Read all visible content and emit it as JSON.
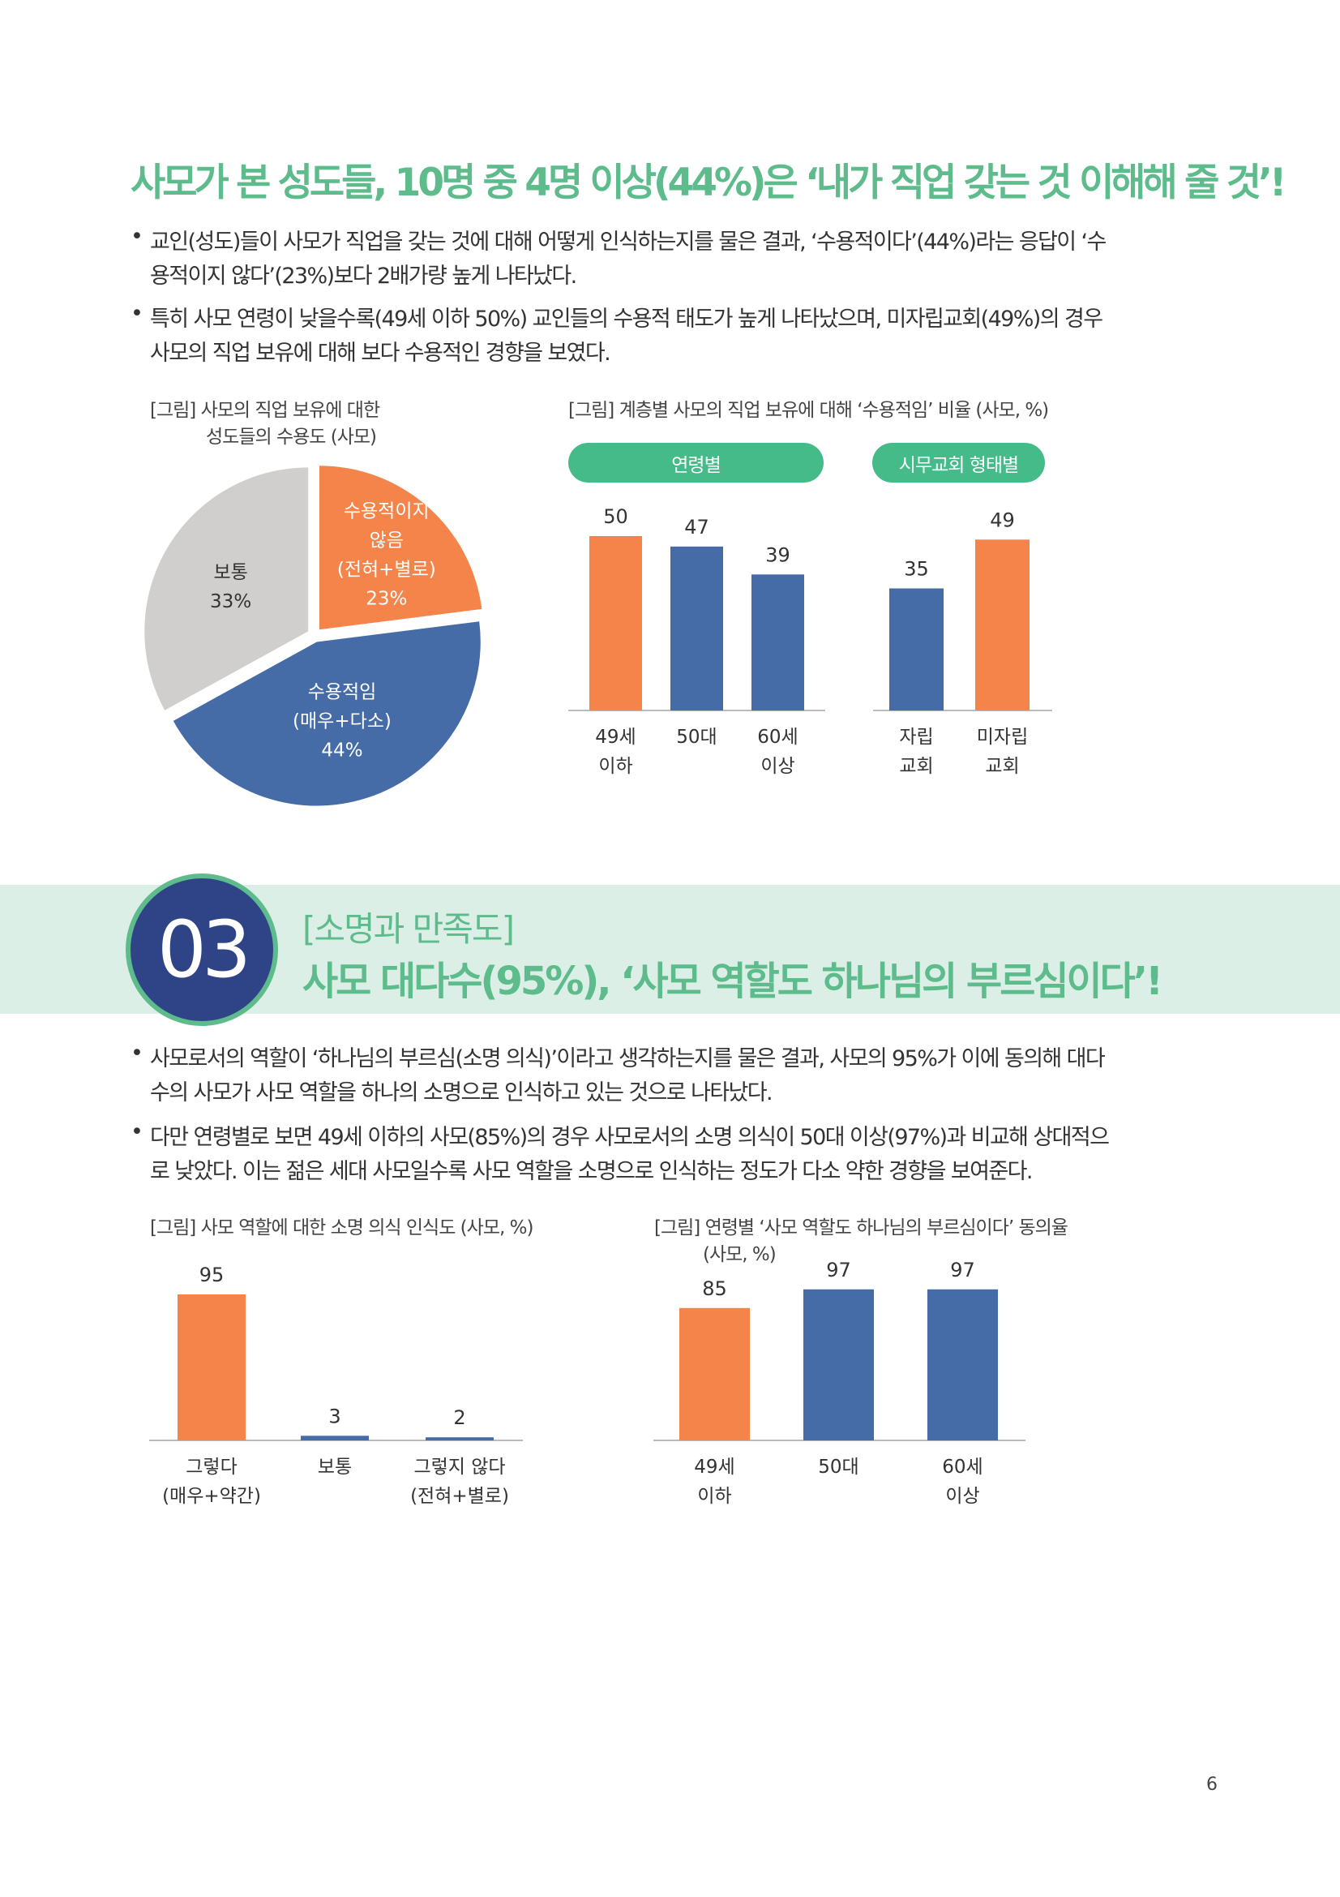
{
  "colors": {
    "accent_green": "#5dbb8c",
    "pill_green": "#46bb8a",
    "orange": "#f4844a",
    "blue": "#466ca8",
    "gray": "#d0cfcd",
    "navy": "#2f4486",
    "band": "#dcefe6"
  },
  "section1": {
    "title": "사모가 본 성도들, 10명 중 4명 이상(44%)은 ‘내가 직업 갖는 것 이해해 줄 것’!",
    "bullets": [
      {
        "lines": [
          "교인(성도)들이 사모가 직업을 갖는 것에 대해 어떻게 인식하는지를 물은 결과, ‘수용적이다’(44%)라는 응답이 ‘수",
          "용적이지 않다’(23%)보다 2배가량 높게 나타났다."
        ]
      },
      {
        "lines": [
          "특히 사모 연령이 낮을수록(49세 이하 50%) 교인들의 수용적 태도가 높게 나타났으며, 미자립교회(49%)의 경우",
          "사모의 직업 보유에 대해 보다 수용적인 경향을 보였다."
        ]
      }
    ]
  },
  "chart_data": [
    {
      "type": "pie",
      "title": [
        "[그림] 사모의 직업 보유에 대한",
        "성도들의 수용도 (사모)"
      ],
      "slices": [
        {
          "label": [
            "수용적이지",
            "않음",
            "(전혀+별로)"
          ],
          "value": 23,
          "value_label": "23%",
          "color": "#f4844a"
        },
        {
          "label": [
            "수용적임",
            "(매우+다소)"
          ],
          "value": 44,
          "value_label": "44%",
          "color": "#466ca8"
        },
        {
          "label": [
            "보통"
          ],
          "value": 33,
          "value_label": "33%",
          "color": "#d0cfcd"
        }
      ]
    },
    {
      "type": "bar",
      "title": "[그림] 계층별 사모의 직업 보유에 대해 ‘수용적임’ 비율 (사모, %)",
      "groups": [
        {
          "name": "연령별",
          "categories": [
            [
              "49세",
              "이하"
            ],
            [
              "50대"
            ],
            [
              "60세",
              "이상"
            ]
          ],
          "values": [
            50,
            47,
            39
          ],
          "colors": [
            "#f4844a",
            "#466ca8",
            "#466ca8"
          ]
        },
        {
          "name": "시무교회 형태별",
          "categories": [
            [
              "자립",
              "교회"
            ],
            [
              "미자립",
              "교회"
            ]
          ],
          "values": [
            35,
            49
          ],
          "colors": [
            "#466ca8",
            "#f4844a"
          ]
        }
      ]
    },
    {
      "type": "bar",
      "title": "[그림] 사모 역할에 대한 소명 의식 인식도 (사모, %)",
      "categories": [
        [
          "그렇다",
          "(매우+약간)"
        ],
        [
          "보통"
        ],
        [
          "그렇지 않다",
          "(전혀+별로)"
        ]
      ],
      "values": [
        95,
        3,
        2
      ],
      "colors": [
        "#f4844a",
        "#466ca8",
        "#466ca8"
      ]
    },
    {
      "type": "bar",
      "title": [
        "[그림] 연령별 ‘사모 역할도 하나님의 부르심이다’ 동의율",
        "(사모, %)"
      ],
      "categories": [
        [
          "49세",
          "이하"
        ],
        [
          "50대"
        ],
        [
          "60세",
          "이상"
        ]
      ],
      "values": [
        85,
        97,
        97
      ],
      "colors": [
        "#f4844a",
        "#466ca8",
        "#466ca8"
      ]
    }
  ],
  "section2": {
    "number": "03",
    "subtitle": "[소명과 만족도]",
    "title": "사모 대다수(95%), ‘사모 역할도 하나님의 부르심이다’!",
    "bullets": [
      {
        "lines": [
          "사모로서의 역할이 ‘하나님의 부르심(소명 의식)’이라고 생각하는지를 물은 결과, 사모의 95%가 이에 동의해 대다",
          "수의 사모가 사모 역할을 하나의 소명으로 인식하고 있는 것으로 나타났다."
        ]
      },
      {
        "lines": [
          "다만 연령별로 보면 49세 이하의 사모(85%)의 경우 사모로서의 소명 의식이 50대 이상(97%)과 비교해 상대적으",
          "로 낮았다. 이는 젊은 세대 사모일수록 사모 역할을 소명으로 인식하는 정도가 다소 약한 경향을 보여준다."
        ]
      }
    ]
  },
  "page_number": "6"
}
